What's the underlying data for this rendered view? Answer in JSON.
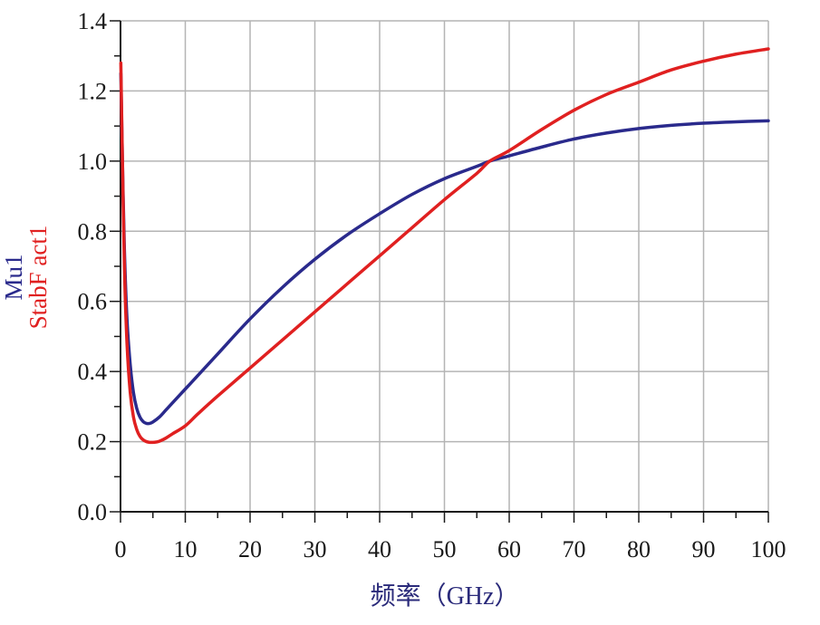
{
  "chart_data": {
    "type": "line",
    "xlabel": "频率（GHz）",
    "ylabels": [
      {
        "text": "Mu1",
        "color": "#2a2a8c"
      },
      {
        "text": "StabF act1",
        "color": "#e02020"
      }
    ],
    "xlim": [
      0,
      100
    ],
    "ylim": [
      0,
      1.4
    ],
    "xticks": [
      0,
      10,
      20,
      30,
      40,
      50,
      60,
      70,
      80,
      90,
      100
    ],
    "yticks": [
      0.0,
      0.2,
      0.4,
      0.6,
      0.8,
      1.0,
      1.2,
      1.4
    ],
    "xtick_labels": [
      "0",
      "10",
      "20",
      "30",
      "40",
      "50",
      "60",
      "70",
      "80",
      "90",
      "100"
    ],
    "ytick_labels": [
      "0.0",
      "0.2",
      "0.4",
      "0.6",
      "0.8",
      "1.0",
      "1.2",
      "1.4"
    ],
    "grid": true,
    "colors": {
      "grid": "#b4b4b4",
      "axis": "#1a1a1a"
    },
    "series": [
      {
        "color": "#2a2a8c",
        "x": [
          0.05,
          0.3,
          0.6,
          1,
          1.5,
          2,
          2.5,
          3,
          3.5,
          4,
          4.5,
          5,
          6,
          7,
          8,
          10,
          12,
          15,
          20,
          25,
          30,
          35,
          40,
          45,
          50,
          55,
          57,
          60,
          65,
          70,
          75,
          80,
          85,
          90,
          95,
          100
        ],
        "y": [
          1.25,
          1.0,
          0.75,
          0.55,
          0.42,
          0.34,
          0.295,
          0.27,
          0.257,
          0.252,
          0.252,
          0.256,
          0.27,
          0.29,
          0.31,
          0.35,
          0.39,
          0.45,
          0.55,
          0.64,
          0.72,
          0.79,
          0.85,
          0.905,
          0.95,
          0.985,
          1.0,
          1.015,
          1.04,
          1.063,
          1.08,
          1.093,
          1.102,
          1.108,
          1.112,
          1.115
        ]
      },
      {
        "color": "#e02020",
        "x": [
          0.05,
          0.3,
          0.6,
          1,
          1.5,
          2,
          2.5,
          3,
          3.5,
          4,
          4.5,
          5,
          5.5,
          6,
          7,
          8,
          10,
          12,
          15,
          20,
          25,
          30,
          35,
          40,
          45,
          50,
          55,
          57,
          60,
          65,
          70,
          75,
          80,
          85,
          90,
          95,
          100
        ],
        "y": [
          1.28,
          1.0,
          0.7,
          0.48,
          0.34,
          0.27,
          0.235,
          0.215,
          0.205,
          0.2,
          0.198,
          0.198,
          0.199,
          0.201,
          0.21,
          0.222,
          0.245,
          0.28,
          0.33,
          0.41,
          0.49,
          0.57,
          0.65,
          0.73,
          0.81,
          0.89,
          0.965,
          1.0,
          1.03,
          1.09,
          1.145,
          1.19,
          1.225,
          1.26,
          1.285,
          1.305,
          1.32
        ]
      }
    ]
  }
}
